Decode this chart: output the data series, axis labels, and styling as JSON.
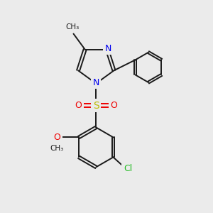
{
  "background_color": "#ebebeb",
  "bond_color": "#1a1a1a",
  "bond_width": 1.4,
  "atom_colors": {
    "N": "#0000ee",
    "O": "#ee0000",
    "S": "#bbbb00",
    "Cl": "#22bb22",
    "C": "#1a1a1a"
  },
  "font_size_atom": 9,
  "font_size_small": 7.5
}
